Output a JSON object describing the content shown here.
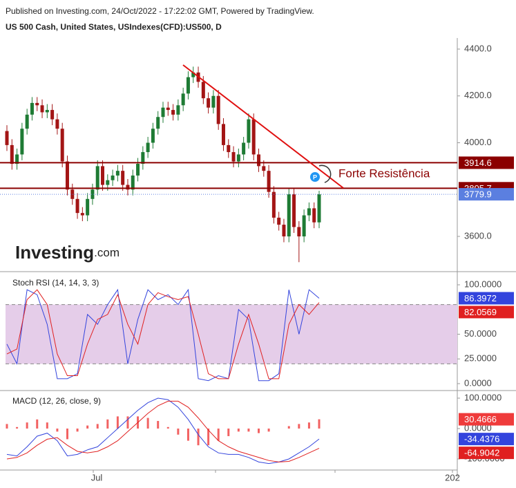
{
  "header": {
    "line1": "Published on Investing.com, 24/Oct/2022 - 17:22:02 GMT, Powered by TradingView.",
    "line2": "US 500 Cash, United States, USIndexes(CFD):US500, D"
  },
  "logo": {
    "word": "Investing",
    "suffix": ".com"
  },
  "chart_data": [
    {
      "type": "candlestick",
      "open": [
        4050,
        3990,
        3910,
        3950,
        4060,
        4120,
        4170,
        4160,
        4130,
        4140,
        4100,
        4060,
        3920,
        3800,
        3760,
        3700,
        3690,
        3760,
        3800,
        3900,
        3820,
        3840,
        3860,
        3880,
        3820,
        3800,
        3860,
        3910,
        3960,
        4000,
        4060,
        4110,
        4150,
        4140,
        4120,
        4160,
        4210,
        4280,
        4300,
        4260,
        4190,
        4150,
        4200,
        4080,
        3990,
        3960,
        3920,
        3950,
        4000,
        4100,
        3950,
        3900,
        3880,
        3790,
        3680,
        3650,
        3600,
        3780,
        3640,
        3600,
        3690,
        3720,
        3660
      ],
      "high": [
        4075,
        4015,
        3975,
        4085,
        4145,
        4195,
        4195,
        4185,
        4165,
        4165,
        4125,
        4085,
        3945,
        3825,
        3785,
        3725,
        3785,
        3825,
        3925,
        3925,
        3865,
        3885,
        3905,
        3905,
        3845,
        3885,
        3935,
        3985,
        4025,
        4085,
        4135,
        4175,
        4175,
        4165,
        4185,
        4235,
        4305,
        4325,
        4325,
        4285,
        4215,
        4225,
        4225,
        4105,
        4015,
        3985,
        3975,
        4025,
        4125,
        4125,
        3975,
        3925,
        3905,
        3815,
        3705,
        3675,
        3805,
        3805,
        3665,
        3715,
        3745,
        3745,
        3795
      ],
      "low": [
        3965,
        3885,
        3885,
        3925,
        4035,
        4095,
        4135,
        4105,
        4105,
        4075,
        4035,
        3895,
        3775,
        3735,
        3675,
        3665,
        3665,
        3735,
        3775,
        3795,
        3795,
        3815,
        3835,
        3795,
        3775,
        3775,
        3835,
        3885,
        3935,
        3975,
        4035,
        4085,
        4115,
        4095,
        4095,
        4135,
        4185,
        4255,
        4235,
        4165,
        4125,
        4125,
        4055,
        3965,
        3935,
        3895,
        3895,
        3925,
        3975,
        3925,
        3875,
        3855,
        3765,
        3655,
        3625,
        3575,
        3575,
        3615,
        3490,
        3575,
        3665,
        3635,
        3635
      ],
      "close": [
        3990,
        3910,
        3950,
        4060,
        4120,
        4170,
        4160,
        4130,
        4140,
        4100,
        4060,
        3920,
        3800,
        3760,
        3700,
        3690,
        3760,
        3800,
        3900,
        3820,
        3840,
        3860,
        3880,
        3820,
        3800,
        3860,
        3910,
        3960,
        4000,
        4060,
        4110,
        4150,
        4140,
        4120,
        4160,
        4210,
        4280,
        4300,
        4260,
        4190,
        4150,
        4200,
        4080,
        3990,
        3960,
        3920,
        3950,
        4000,
        4100,
        3950,
        3900,
        3880,
        3790,
        3680,
        3650,
        3600,
        3780,
        3640,
        3600,
        3690,
        3720,
        3660,
        3779.9
      ],
      "up_color": "#1e7b34",
      "down_color": "#a31515",
      "ylim": [
        3449.5,
        4447.2
      ],
      "yticks": [
        {
          "value": 3600,
          "label": "3600.0"
        },
        {
          "value": 4000,
          "label": "4000.0"
        },
        {
          "value": 4200,
          "label": "4200.0"
        },
        {
          "value": 4400,
          "label": "4400.0"
        }
      ],
      "levels": [
        {
          "value": 3914.6,
          "color": "#8b0000"
        },
        {
          "value": 3805.7,
          "color": "#8b0000"
        }
      ],
      "last_color": "#5b7fe0",
      "annotation": "Forte Resistência",
      "xtick_labels": [
        "Jul",
        "202"
      ]
    },
    {
      "type": "line",
      "title": "Stoch RSI (14, 14, 3, 3)",
      "series": [
        {
          "name": "K",
          "color": "#3344dd",
          "values": [
            40,
            20,
            95,
            90,
            60,
            5,
            5,
            10,
            70,
            60,
            80,
            95,
            20,
            65,
            95,
            85,
            90,
            80,
            95,
            5,
            3,
            8,
            5,
            75,
            65,
            3,
            3,
            10,
            95,
            50,
            95,
            86.3972
          ]
        },
        {
          "name": "D",
          "color": "#e02020",
          "values": [
            30,
            35,
            85,
            95,
            80,
            30,
            8,
            8,
            40,
            65,
            70,
            90,
            60,
            40,
            80,
            92,
            88,
            85,
            88,
            50,
            10,
            5,
            5,
            40,
            70,
            40,
            5,
            5,
            60,
            80,
            70,
            82.0569
          ]
        }
      ],
      "band": [
        20,
        80
      ],
      "band_color": "#e5cde9",
      "ylim": [
        -7,
        113.3
      ],
      "yticks": [
        {
          "value": 0,
          "label": "0.0000"
        },
        {
          "value": 25,
          "label": "25.0000"
        },
        {
          "value": 50,
          "label": "50.0000"
        },
        {
          "value": 100,
          "label": "100.0000"
        }
      ]
    },
    {
      "type": "macd",
      "title": "MACD (12, 26, close, 9)",
      "histogram": {
        "color": "#ef3b3b",
        "values": [
          15,
          5,
          20,
          30,
          20,
          -10,
          -35,
          -10,
          10,
          15,
          30,
          40,
          40,
          40,
          35,
          25,
          5,
          -20,
          -40,
          -55,
          -55,
          -40,
          -25,
          -10,
          -10,
          -15,
          -10,
          0,
          8,
          15,
          20,
          30.4666
        ]
      },
      "series": [
        {
          "name": "MACD",
          "color": "#3344dd",
          "values": [
            -85,
            -90,
            -60,
            -25,
            -15,
            -40,
            -90,
            -85,
            -70,
            -60,
            -30,
            0,
            30,
            60,
            85,
            100,
            95,
            70,
            30,
            -20,
            -60,
            -80,
            -85,
            -85,
            -95,
            -110,
            -115,
            -110,
            -100,
            -80,
            -60,
            -34.4376
          ]
        },
        {
          "name": "Signal",
          "color": "#e02020",
          "values": [
            -100,
            -95,
            -80,
            -55,
            -35,
            -30,
            -55,
            -75,
            -80,
            -75,
            -60,
            -40,
            -10,
            20,
            50,
            75,
            90,
            90,
            70,
            35,
            -5,
            -40,
            -60,
            -75,
            -85,
            -95,
            -105,
            -110,
            -108,
            -95,
            -80,
            -64.9042
          ]
        }
      ],
      "ylim": [
        -136.4,
        125
      ],
      "yticks": [
        {
          "value": -100,
          "label": "-100.0000"
        },
        {
          "value": 0,
          "label": "0.0000"
        },
        {
          "value": 100,
          "label": "100.0000"
        }
      ]
    }
  ]
}
